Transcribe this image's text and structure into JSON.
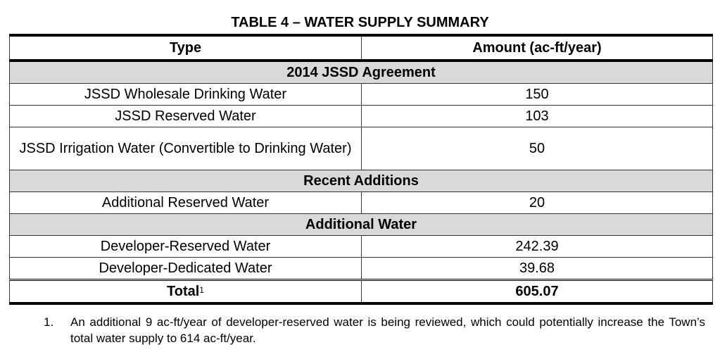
{
  "title": "TABLE 4 – WATER SUPPLY SUMMARY",
  "headers": {
    "type": "Type",
    "amount": "Amount (ac-ft/year)"
  },
  "sections": [
    {
      "label": "2014 JSSD Agreement",
      "rows": [
        {
          "type": "JSSD Wholesale Drinking Water",
          "amount": "150"
        },
        {
          "type": "JSSD Reserved Water",
          "amount": "103"
        },
        {
          "type": "JSSD Irrigation Water (Convertible to Drinking Water)",
          "amount": "50"
        }
      ]
    },
    {
      "label": "Recent Additions",
      "rows": [
        {
          "type": "Additional Reserved Water",
          "amount": "20"
        }
      ]
    },
    {
      "label": "Additional Water",
      "rows": [
        {
          "type": "Developer-Reserved Water",
          "amount": "242.39"
        },
        {
          "type": "Developer-Dedicated Water",
          "amount": "39.68"
        }
      ]
    }
  ],
  "total": {
    "label": "Total",
    "footnote_ref": "1",
    "amount": "605.07"
  },
  "footnote": {
    "number": "1.",
    "text": "An additional 9 ac-ft/year of developer-reserved water is being reviewed, which could potentially increase the Town’s total water supply to 614 ac-ft/year."
  }
}
